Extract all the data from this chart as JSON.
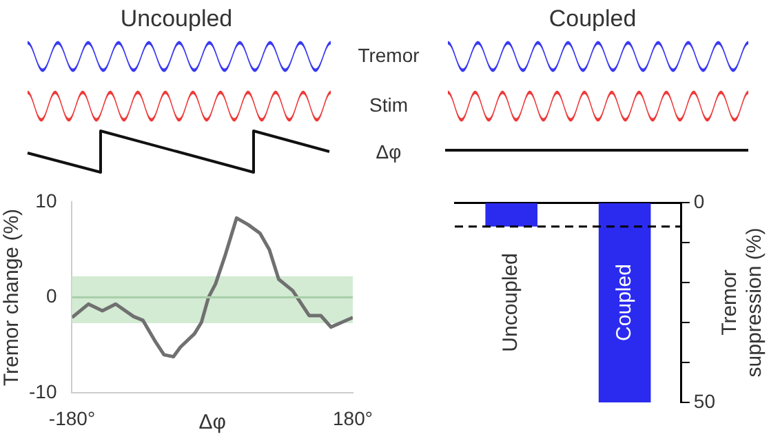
{
  "chart_data": [
    {
      "type": "other",
      "annotations": [
        "Uncoupled",
        "Coupled",
        "Tremor",
        "Stim",
        "Δφ"
      ]
    },
    {
      "type": "line",
      "ylabel": "Tremor change (%)",
      "xlabel": "Δφ",
      "xlim": [
        -180,
        180
      ],
      "xticks": [
        {
          "value": -180,
          "label": "-180°"
        },
        {
          "value": 180,
          "label": "180°"
        }
      ],
      "ylim": [
        -10,
        10
      ],
      "yticks": [
        -10,
        0,
        10
      ],
      "series": [
        {
          "color": "#707070",
          "x": [
            -180,
            -159,
            -141,
            -124,
            -101,
            -89,
            -74,
            -62,
            -50,
            -41,
            -23,
            -14,
            -5,
            4,
            16,
            31,
            46,
            61,
            73,
            85,
            103,
            124,
            139,
            152,
            166,
            180
          ],
          "values": [
            -2.1,
            -0.7,
            -1.4,
            -0.7,
            -2.0,
            -2.4,
            -4.5,
            -6.0,
            -6.2,
            -5.2,
            -3.8,
            -2.6,
            0,
            1.4,
            4.3,
            8.3,
            7.6,
            6.7,
            5.0,
            1.9,
            0.7,
            -1.9,
            -1.9,
            -3.1,
            -2.6,
            -2.1
          ]
        }
      ],
      "bands": [
        {
          "axis": "y",
          "from": -2.7,
          "to": 2.2,
          "color": "#d3ead3"
        }
      ],
      "ref_lines": [
        {
          "axis": "y",
          "value": 0,
          "color": "#a9cfa9"
        }
      ]
    },
    {
      "type": "bar",
      "categories": [
        "Uncoupled",
        "Coupled"
      ],
      "values": [
        6,
        50
      ],
      "color": "#2b2bf0",
      "ylabel": "Tremor suppression (%)",
      "ylim": [
        50,
        0
      ],
      "yticks": [
        0,
        {
          "value": 10,
          "label": null
        },
        {
          "value": 20,
          "label": null
        },
        {
          "value": 30,
          "label": null
        },
        {
          "value": 40,
          "label": null
        },
        50
      ],
      "ref_lines": [
        {
          "axis": "y",
          "value": 6,
          "color": "#000000",
          "line_style": "dashed"
        }
      ]
    }
  ]
}
